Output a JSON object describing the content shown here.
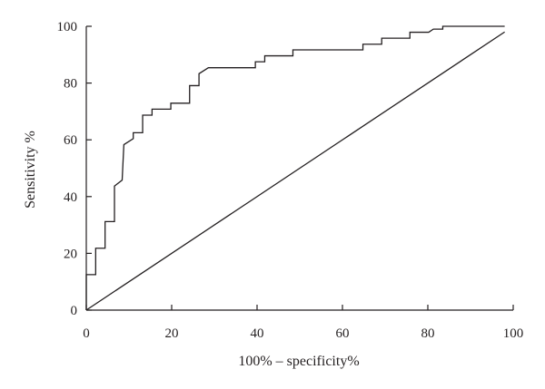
{
  "chart_data": {
    "type": "line",
    "title": "",
    "xlabel": "100% – specificity%",
    "ylabel": "Sensitivity %",
    "xlim": [
      0,
      100
    ],
    "ylim": [
      0,
      100
    ],
    "xticks": [
      "0",
      "20",
      "40",
      "60",
      "80",
      "100"
    ],
    "yticks": [
      "0",
      "20",
      "40",
      "60",
      "80",
      "100"
    ],
    "grid": false,
    "legend": "none",
    "series": [
      {
        "style": "step",
        "points": [
          [
            0,
            0
          ],
          [
            0,
            12.5
          ],
          [
            2.2,
            12.5
          ],
          [
            2.2,
            21.8
          ],
          [
            4.4,
            21.8
          ],
          [
            4.4,
            31.2
          ],
          [
            6.6,
            31.2
          ],
          [
            6.6,
            43.7
          ],
          [
            8.4,
            45.8
          ],
          [
            8.8,
            58.3
          ],
          [
            11,
            60.4
          ],
          [
            11,
            62.5
          ],
          [
            13.2,
            62.5
          ],
          [
            13.2,
            68.7
          ],
          [
            15.4,
            68.7
          ],
          [
            15.4,
            70.8
          ],
          [
            19.8,
            70.8
          ],
          [
            19.8,
            72.9
          ],
          [
            24.2,
            72.9
          ],
          [
            24.2,
            79.1
          ],
          [
            26.4,
            79.1
          ],
          [
            26.4,
            83.3
          ],
          [
            28.6,
            85.4
          ],
          [
            39.6,
            85.4
          ],
          [
            39.6,
            87.5
          ],
          [
            41.8,
            87.5
          ],
          [
            41.8,
            89.6
          ],
          [
            48.4,
            89.6
          ],
          [
            48.4,
            91.7
          ],
          [
            64.8,
            91.7
          ],
          [
            64.8,
            93.7
          ],
          [
            69.2,
            93.7
          ],
          [
            69.2,
            95.8
          ],
          [
            75.8,
            95.8
          ],
          [
            75.8,
            97.9
          ],
          [
            80.2,
            97.9
          ],
          [
            81.3,
            99.0
          ],
          [
            83.5,
            99.0
          ],
          [
            83.5,
            100
          ],
          [
            98,
            100
          ]
        ]
      },
      {
        "style": "diagonal",
        "points": [
          [
            0,
            0
          ],
          [
            98,
            98
          ]
        ]
      }
    ],
    "colors": {
      "line": "#231f20",
      "axis": "#231f20"
    }
  }
}
